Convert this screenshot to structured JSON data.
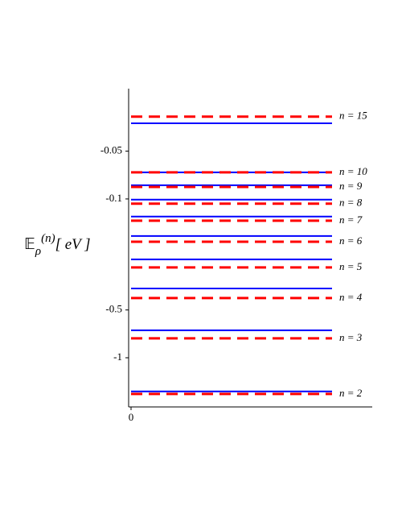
{
  "chart_data": {
    "type": "levels",
    "log_scale": true,
    "y_label": {
      "symbol": "𝔼",
      "subscript": "ρ",
      "superscript": "(n)",
      "unit": "[ eV ]"
    },
    "levels": [
      "n = 15",
      "n = 10",
      "n = 9",
      "n = 8",
      "n = 7",
      "n = 6",
      "n = 5",
      "n = 4",
      "n = 3",
      "n = 2"
    ],
    "series": [
      {
        "color": "#0000ff",
        "style": "solid",
        "values": [
          -0.0334,
          -0.068,
          -0.082,
          -0.101,
          -0.129,
          -0.171,
          -0.24,
          -0.366,
          -0.671,
          -1.63
        ]
      },
      {
        "color": "#ff0000",
        "style": "dashed",
        "values": [
          -0.0303,
          -0.068,
          -0.084,
          -0.107,
          -0.137,
          -0.186,
          -0.27,
          -0.421,
          -0.755,
          -1.69
        ]
      }
    ],
    "ylim": [
      -2.04,
      -0.0202
    ],
    "yticks": [
      -0.05,
      -0.1,
      -0.5,
      -1
    ],
    "xlim": [
      0,
      1.2
    ],
    "xticks": [
      0
    ]
  }
}
